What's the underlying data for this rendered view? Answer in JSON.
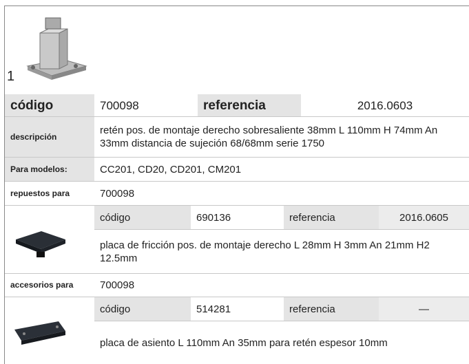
{
  "item": {
    "number": "1"
  },
  "main": {
    "code_label": "código",
    "code": "700098",
    "ref_label": "referencia",
    "ref": "2016.0603"
  },
  "description": {
    "label": "descripción",
    "text": "retén  pos. de montaje derecho sobresaliente 38mm L 110mm H 74mm An 33mm distancia de sujeción 68/68mm serie 1750"
  },
  "models": {
    "label": "Para modelos:",
    "text": "CC201, CD20, CD201, CM201"
  },
  "spares": {
    "label": "repuestos para",
    "code": "700098",
    "items": [
      {
        "code_label": "código",
        "code": "690136",
        "ref_label": "referencia",
        "ref": "2016.0605",
        "description": "placa de fricción  pos. de montaje derecho L 28mm H 3mm An 21mm H2 12.5mm"
      }
    ]
  },
  "accessories": {
    "label": "accesorios para",
    "code": "700098",
    "items": [
      {
        "code_label": "código",
        "code": "514281",
        "ref_label": "referencia",
        "ref": "—",
        "description": "placa de asiento  L 110mm An 35mm para retén espesor 10mm"
      }
    ]
  }
}
